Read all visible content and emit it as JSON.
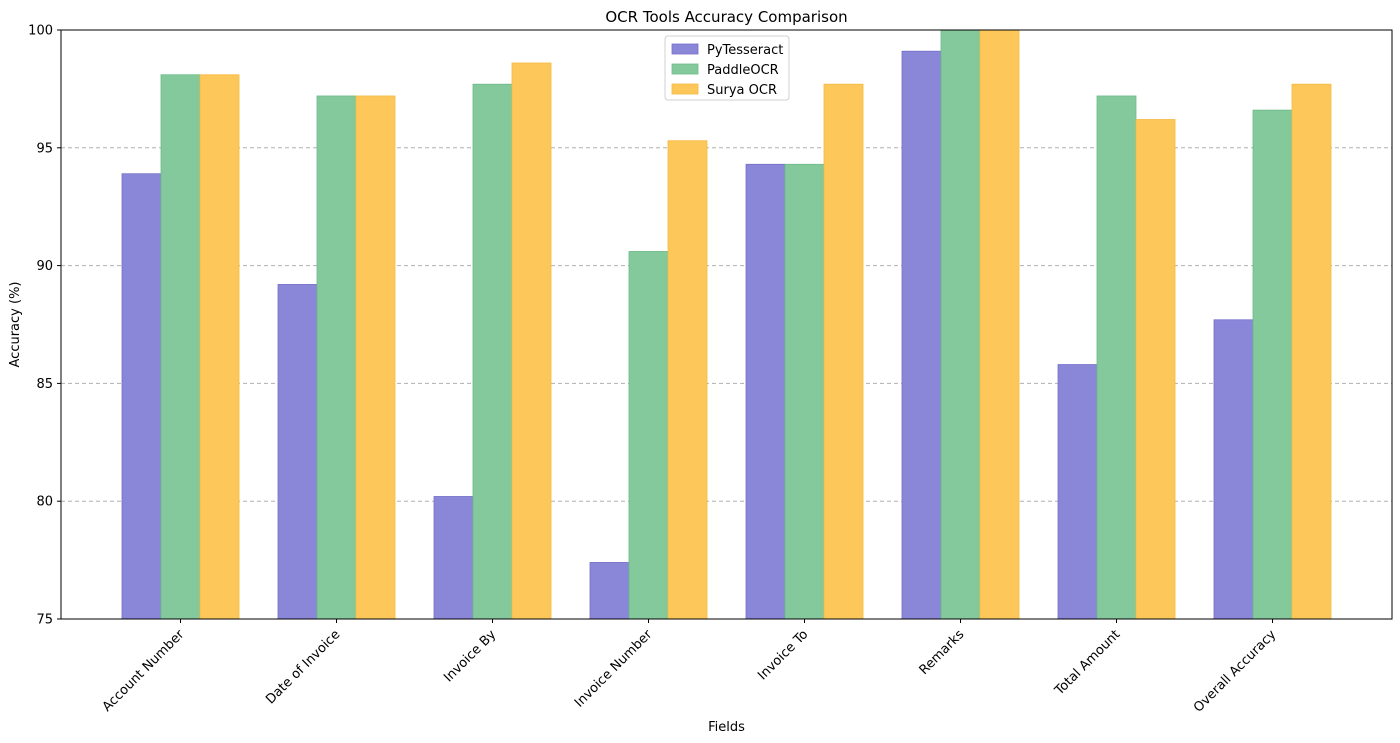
{
  "chart_data": {
    "type": "bar",
    "title": "OCR Tools Accuracy Comparison",
    "xlabel": "Fields",
    "ylabel": "Accuracy (%)",
    "ylim": [
      75,
      100
    ],
    "yticks": [
      75,
      80,
      85,
      90,
      95,
      100
    ],
    "grid": "y-dashed",
    "legend_position": "top-center",
    "categories": [
      "Account Number",
      "Date of Invoice",
      "Invoice By",
      "Invoice Number",
      "Invoice To",
      "Remarks",
      "Total Amount",
      "Overall Accuracy"
    ],
    "series": [
      {
        "name": "PyTesseract",
        "color": "#8a86d8",
        "edge": "#7470c8",
        "values": [
          93.9,
          89.2,
          80.2,
          77.4,
          94.3,
          99.1,
          85.8,
          87.7
        ]
      },
      {
        "name": "PaddleOCR",
        "color": "#84c99c",
        "edge": "#6cbb88",
        "values": [
          98.1,
          97.2,
          97.7,
          90.6,
          94.3,
          100,
          97.2,
          96.6
        ]
      },
      {
        "name": "Surya OCR",
        "color": "#fdc75a",
        "edge": "#f4b940",
        "values": [
          98.1,
          97.2,
          98.6,
          95.3,
          97.7,
          100,
          96.2,
          97.7
        ]
      }
    ]
  }
}
